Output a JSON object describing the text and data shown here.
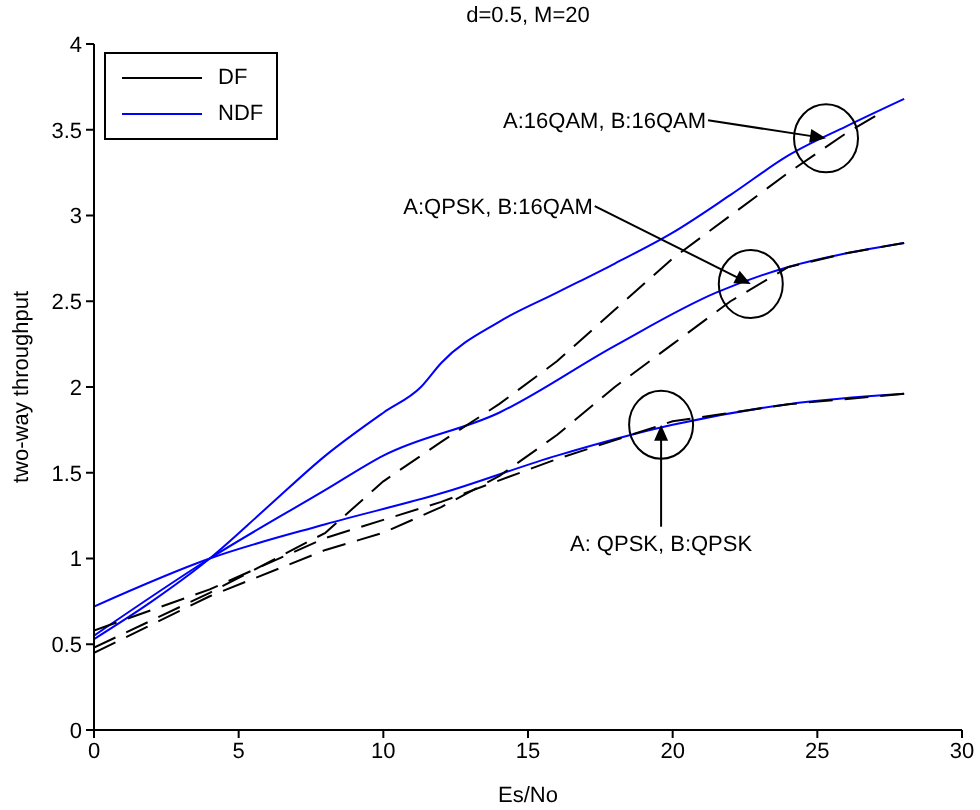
{
  "chart_data": {
    "type": "line",
    "title": "d=0.5, M=20",
    "xlabel": "Es/No",
    "ylabel": "two-way throughput",
    "xlim": [
      0,
      30
    ],
    "ylim": [
      0,
      4
    ],
    "xticks": [
      0,
      5,
      10,
      15,
      20,
      25,
      30
    ],
    "yticks": [
      0,
      0.5,
      1,
      1.5,
      2,
      2.5,
      3,
      3.5,
      4
    ],
    "grid": false,
    "legend": "top left",
    "marker": "none",
    "series": [
      {
        "name": "DF",
        "color": "#000000",
        "line_style": "dashed",
        "x": [
          0,
          4,
          8,
          10,
          12,
          14,
          16,
          18,
          20,
          22,
          24,
          26,
          27
        ],
        "values": [
          0.48,
          0.8,
          1.15,
          1.45,
          1.68,
          1.9,
          2.15,
          2.45,
          2.75,
          3.0,
          3.25,
          3.48,
          3.58
        ]
      },
      {
        "color": "#000000",
        "line_style": "dashed",
        "x": [
          0,
          4,
          8,
          10,
          12,
          14,
          16,
          18,
          20,
          22,
          24,
          26,
          28
        ],
        "values": [
          0.45,
          0.78,
          1.05,
          1.15,
          1.3,
          1.48,
          1.72,
          2.0,
          2.25,
          2.5,
          2.7,
          2.78,
          2.84
        ]
      },
      {
        "color": "#000000",
        "line_style": "dashed",
        "x": [
          0,
          4,
          8,
          12,
          16,
          20,
          24,
          28
        ],
        "values": [
          0.58,
          0.82,
          1.12,
          1.33,
          1.58,
          1.8,
          1.9,
          1.96
        ]
      },
      {
        "name": "NDF",
        "color": "#0000ff",
        "line_style": "solid",
        "x": [
          0,
          2,
          4,
          6,
          8,
          10,
          11.3,
          12,
          14,
          16,
          18,
          20,
          22,
          24,
          26,
          28
        ],
        "values": [
          0.53,
          0.75,
          1.0,
          1.3,
          1.6,
          1.85,
          2.0,
          2.14,
          2.38,
          2.55,
          2.72,
          2.9,
          3.12,
          3.35,
          3.52,
          3.68
        ]
      },
      {
        "color": "#0000ff",
        "line_style": "solid",
        "x": [
          0,
          4,
          8,
          10,
          14,
          18,
          21.5,
          24,
          26,
          28
        ],
        "values": [
          0.55,
          1.0,
          1.4,
          1.6,
          1.85,
          2.24,
          2.55,
          2.7,
          2.78,
          2.84
        ]
      },
      {
        "color": "#0000ff",
        "line_style": "solid",
        "x": [
          0,
          4,
          8,
          12,
          16,
          20,
          24,
          28
        ],
        "values": [
          0.72,
          1.0,
          1.2,
          1.38,
          1.6,
          1.78,
          1.9,
          1.96
        ]
      }
    ],
    "annotations": [
      {
        "text": "A:16QAM, B:16QAM",
        "x": 25.3,
        "y": 3.45
      },
      {
        "text": "A:QPSK, B:16QAM",
        "x": 22.7,
        "y": 2.6
      },
      {
        "text": "A: QPSK, B:QPSK",
        "x": 19.6,
        "y": 1.78
      }
    ]
  }
}
